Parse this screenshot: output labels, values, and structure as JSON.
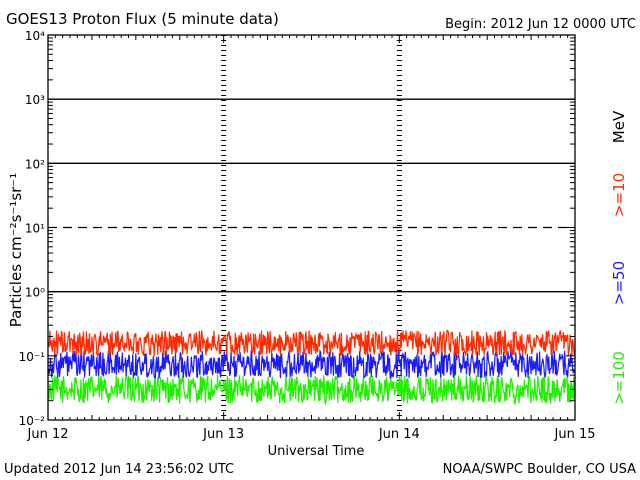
{
  "header": {
    "title": "GOES13 Proton Flux (5 minute data)",
    "begin": "Begin: 2012 Jun 12 0000 UTC"
  },
  "footer": {
    "updated": "Updated 2012 Jun 14 23:56:02 UTC",
    "credit": "NOAA/SWPC Boulder, CO USA"
  },
  "chart_data": {
    "type": "line",
    "title": "GOES13 Proton Flux (5 minute data)",
    "xlabel": "Universal Time",
    "ylabel": "Particles cm⁻²s⁻¹sr⁻¹",
    "y_scale": "log",
    "ylim": [
      0.01,
      10000
    ],
    "y_tick_labels": [
      "10⁻²",
      "10⁻¹",
      "10⁰",
      "10¹",
      "10²",
      "10³",
      "10⁴"
    ],
    "y_tick_values": [
      0.01,
      0.1,
      1,
      10,
      100,
      1000,
      10000
    ],
    "x_tick_labels": [
      "Jun 12",
      "Jun 13",
      "Jun 14",
      "Jun 15"
    ],
    "xlim_days": [
      0,
      3
    ],
    "threshold_lines": [
      {
        "value": 10,
        "style": "dashed"
      },
      {
        "value": 1,
        "style": "solid"
      },
      {
        "value": 100,
        "style": "solid"
      },
      {
        "value": 1000,
        "style": "solid"
      }
    ],
    "energy_unit": "MeV",
    "series": [
      {
        "name": ">=10",
        "color": "#ff2a00",
        "typical_range": [
          0.1,
          0.25
        ],
        "points_per_day": 288
      },
      {
        "name": ">=50",
        "color": "#1a1aff",
        "typical_range": [
          0.045,
          0.12
        ],
        "points_per_day": 288
      },
      {
        "name": ">=100",
        "color": "#22ee00",
        "typical_range": [
          0.018,
          0.05
        ],
        "points_per_day": 288
      }
    ]
  }
}
